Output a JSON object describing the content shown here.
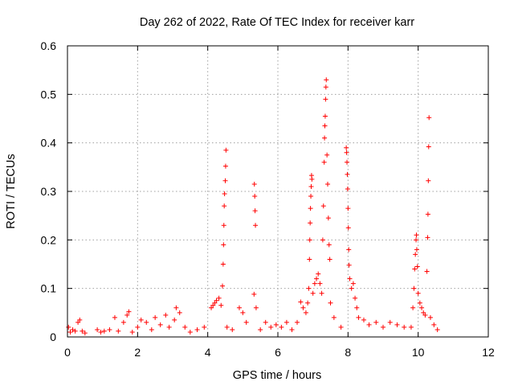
{
  "chart_data": {
    "type": "scatter",
    "title": "Day 262 of 2022, Rate Of TEC Index for receiver karr",
    "xlabel": "GPS time / hours",
    "ylabel": "ROTI / TECUs",
    "xlim": [
      0,
      12
    ],
    "ylim": [
      0,
      0.6
    ],
    "xticks": [
      0,
      2,
      4,
      6,
      8,
      10,
      12
    ],
    "yticks": [
      0,
      0.1,
      0.2,
      0.3,
      0.4,
      0.5,
      0.6
    ],
    "xtick_labels": [
      "0",
      "2",
      "4",
      "6",
      "8",
      "10",
      "12"
    ],
    "ytick_labels": [
      "0",
      "0.1",
      "0.2",
      "0.3",
      "0.4",
      "0.5",
      "0.6"
    ],
    "grid": true,
    "marker": "+",
    "color": "#ff0000",
    "series": [
      {
        "name": "ROTI",
        "points": [
          [
            0.03,
            0.02
          ],
          [
            0.08,
            0.01
          ],
          [
            0.15,
            0.015
          ],
          [
            0.22,
            0.012
          ],
          [
            0.3,
            0.03
          ],
          [
            0.35,
            0.035
          ],
          [
            0.42,
            0.012
          ],
          [
            0.5,
            0.008
          ],
          [
            0.85,
            0.015
          ],
          [
            0.95,
            0.01
          ],
          [
            1.05,
            0.012
          ],
          [
            1.2,
            0.015
          ],
          [
            1.35,
            0.04
          ],
          [
            1.45,
            0.012
          ],
          [
            1.6,
            0.03
          ],
          [
            1.7,
            0.045
          ],
          [
            1.75,
            0.052
          ],
          [
            1.85,
            0.01
          ],
          [
            2.0,
            0.02
          ],
          [
            2.1,
            0.035
          ],
          [
            2.25,
            0.03
          ],
          [
            2.4,
            0.015
          ],
          [
            2.5,
            0.04
          ],
          [
            2.65,
            0.025
          ],
          [
            2.8,
            0.045
          ],
          [
            2.9,
            0.02
          ],
          [
            3.05,
            0.035
          ],
          [
            3.1,
            0.06
          ],
          [
            3.2,
            0.05
          ],
          [
            3.35,
            0.02
          ],
          [
            3.5,
            0.01
          ],
          [
            3.7,
            0.015
          ],
          [
            3.9,
            0.02
          ],
          [
            4.1,
            0.06
          ],
          [
            4.15,
            0.065
          ],
          [
            4.2,
            0.07
          ],
          [
            4.25,
            0.075
          ],
          [
            4.32,
            0.08
          ],
          [
            4.38,
            0.065
          ],
          [
            4.42,
            0.105
          ],
          [
            4.44,
            0.15
          ],
          [
            4.45,
            0.19
          ],
          [
            4.46,
            0.23
          ],
          [
            4.47,
            0.27
          ],
          [
            4.48,
            0.295
          ],
          [
            4.5,
            0.322
          ],
          [
            4.51,
            0.352
          ],
          [
            4.52,
            0.385
          ],
          [
            4.55,
            0.02
          ],
          [
            4.7,
            0.015
          ],
          [
            4.9,
            0.06
          ],
          [
            5.0,
            0.05
          ],
          [
            5.1,
            0.03
          ],
          [
            5.32,
            0.088
          ],
          [
            5.33,
            0.315
          ],
          [
            5.34,
            0.29
          ],
          [
            5.35,
            0.26
          ],
          [
            5.36,
            0.23
          ],
          [
            5.38,
            0.06
          ],
          [
            5.5,
            0.015
          ],
          [
            5.65,
            0.03
          ],
          [
            5.8,
            0.02
          ],
          [
            5.95,
            0.025
          ],
          [
            6.1,
            0.02
          ],
          [
            6.25,
            0.03
          ],
          [
            6.4,
            0.015
          ],
          [
            6.55,
            0.03
          ],
          [
            6.65,
            0.072
          ],
          [
            6.72,
            0.06
          ],
          [
            6.8,
            0.05
          ],
          [
            6.85,
            0.07
          ],
          [
            6.88,
            0.1
          ],
          [
            6.9,
            0.16
          ],
          [
            6.91,
            0.2
          ],
          [
            6.92,
            0.235
          ],
          [
            6.93,
            0.265
          ],
          [
            6.94,
            0.29
          ],
          [
            6.95,
            0.31
          ],
          [
            6.96,
            0.333
          ],
          [
            6.97,
            0.325
          ],
          [
            7.0,
            0.09
          ],
          [
            7.05,
            0.11
          ],
          [
            7.1,
            0.12
          ],
          [
            7.15,
            0.13
          ],
          [
            7.2,
            0.11
          ],
          [
            7.25,
            0.09
          ],
          [
            7.28,
            0.2
          ],
          [
            7.3,
            0.27
          ],
          [
            7.32,
            0.36
          ],
          [
            7.33,
            0.41
          ],
          [
            7.34,
            0.435
          ],
          [
            7.35,
            0.455
          ],
          [
            7.36,
            0.49
          ],
          [
            7.37,
            0.515
          ],
          [
            7.38,
            0.53
          ],
          [
            7.4,
            0.375
          ],
          [
            7.42,
            0.315
          ],
          [
            7.44,
            0.245
          ],
          [
            7.46,
            0.19
          ],
          [
            7.48,
            0.16
          ],
          [
            7.5,
            0.07
          ],
          [
            7.6,
            0.04
          ],
          [
            7.8,
            0.02
          ],
          [
            7.95,
            0.39
          ],
          [
            7.96,
            0.38
          ],
          [
            7.97,
            0.36
          ],
          [
            7.98,
            0.335
          ],
          [
            7.99,
            0.305
          ],
          [
            8.0,
            0.265
          ],
          [
            8.01,
            0.225
          ],
          [
            8.02,
            0.18
          ],
          [
            8.03,
            0.148
          ],
          [
            8.05,
            0.12
          ],
          [
            8.1,
            0.1
          ],
          [
            8.15,
            0.11
          ],
          [
            8.2,
            0.08
          ],
          [
            8.25,
            0.06
          ],
          [
            8.3,
            0.04
          ],
          [
            8.45,
            0.035
          ],
          [
            8.6,
            0.025
          ],
          [
            8.8,
            0.03
          ],
          [
            9.0,
            0.02
          ],
          [
            9.2,
            0.03
          ],
          [
            9.4,
            0.025
          ],
          [
            9.6,
            0.02
          ],
          [
            9.8,
            0.02
          ],
          [
            9.85,
            0.06
          ],
          [
            9.88,
            0.1
          ],
          [
            9.9,
            0.14
          ],
          [
            9.92,
            0.17
          ],
          [
            9.94,
            0.2
          ],
          [
            9.95,
            0.21
          ],
          [
            9.96,
            0.18
          ],
          [
            9.98,
            0.145
          ],
          [
            10.0,
            0.09
          ],
          [
            10.05,
            0.07
          ],
          [
            10.1,
            0.06
          ],
          [
            10.15,
            0.05
          ],
          [
            10.2,
            0.045
          ],
          [
            10.25,
            0.135
          ],
          [
            10.27,
            0.205
          ],
          [
            10.28,
            0.253
          ],
          [
            10.29,
            0.322
          ],
          [
            10.3,
            0.392
          ],
          [
            10.31,
            0.452
          ],
          [
            10.35,
            0.04
          ],
          [
            10.45,
            0.025
          ],
          [
            10.55,
            0.015
          ]
        ]
      }
    ]
  }
}
